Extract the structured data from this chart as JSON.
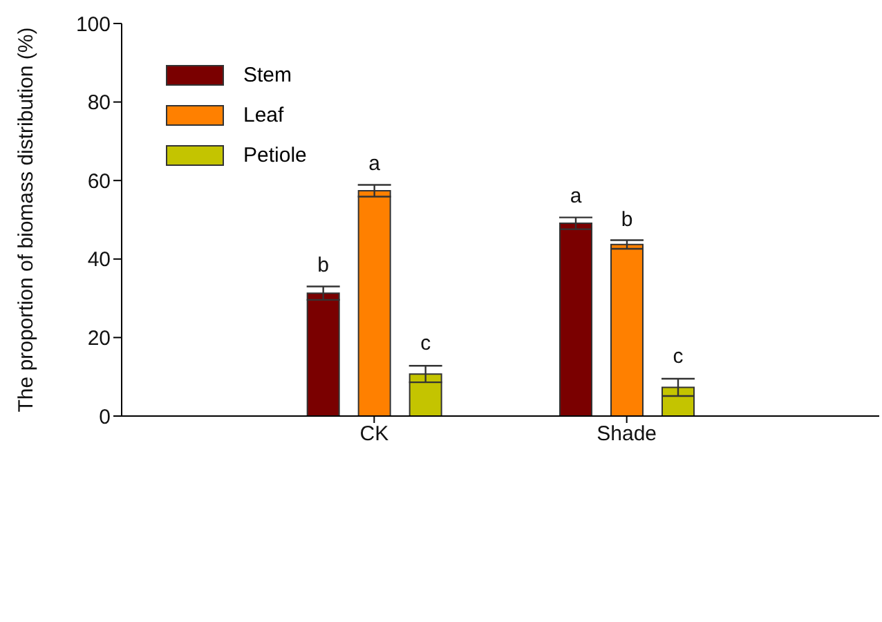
{
  "chart_data": {
    "type": "bar",
    "ylabel": "The proportion of biomass distribution (%)",
    "categories": [
      "CK",
      "Shade"
    ],
    "series": [
      {
        "name": "Stem",
        "color": "#7a0000",
        "values": [
          31.3,
          49.1
        ],
        "errors": [
          1.7,
          1.5
        ],
        "value_labels": [
          "b",
          "a"
        ]
      },
      {
        "name": "Leaf",
        "color": "#ff8000",
        "values": [
          57.4,
          43.7
        ],
        "errors": [
          1.5,
          1.1
        ],
        "value_labels": [
          "a",
          "b"
        ]
      },
      {
        "name": "Petiole",
        "color": "#c4c400",
        "values": [
          10.7,
          7.3
        ],
        "errors": [
          2.1,
          2.2
        ],
        "value_labels": [
          "c",
          "c"
        ]
      }
    ],
    "ylim": [
      0,
      100
    ],
    "yticks": [
      0,
      20,
      40,
      60,
      80,
      100
    ],
    "legend": "top left"
  }
}
